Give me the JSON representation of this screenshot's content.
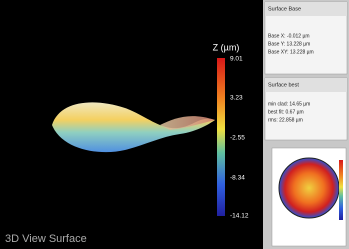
{
  "view": {
    "axis_label": "Z (µm)",
    "scale_ticks": [
      "9.01",
      "3.23",
      "-2.55",
      "-8.34",
      "-14.12"
    ],
    "caption": "3D View Surface"
  },
  "panel": {
    "section1": {
      "title": "Surface Base",
      "lines": [
        "Base X: -0.012 µm",
        "Base Y: 13.228 µm",
        "Base XY: 13.228 µm"
      ]
    },
    "section2": {
      "title": "Surface best",
      "lines": [
        "min clad: 14.65 µm",
        "best fit: 0.67 µm",
        "rms: 22.858 µm"
      ]
    }
  }
}
